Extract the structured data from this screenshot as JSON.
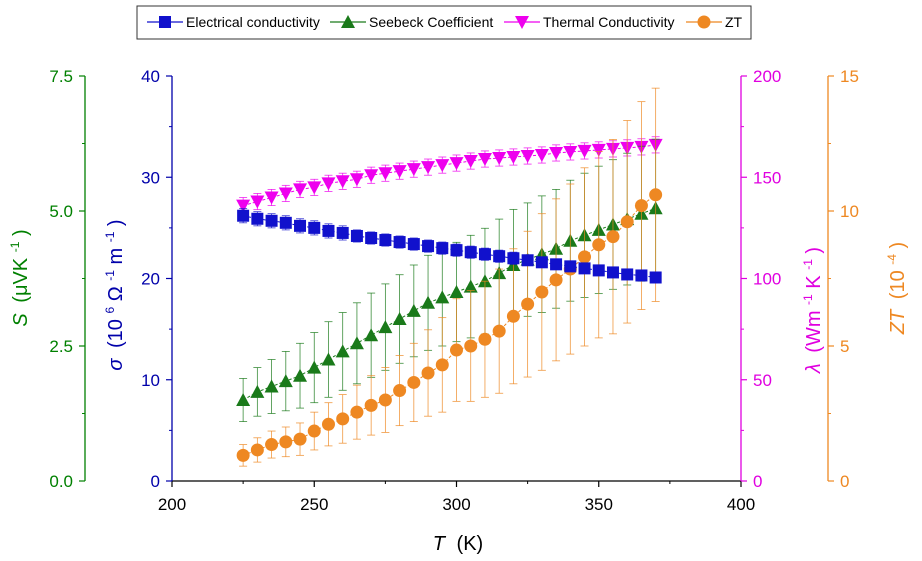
{
  "chart_data": {
    "type": "scatter",
    "x_axis": {
      "label": "T",
      "unit": "(K)",
      "range": [
        200,
        400
      ],
      "ticks": [
        200,
        250,
        300,
        350,
        400
      ],
      "tick_labels": [
        "200",
        "250",
        "300",
        "350",
        "400"
      ]
    },
    "y_axes": {
      "S": {
        "label_symbol": "S",
        "label_unit": "(μVK",
        "label_exp": "-1",
        "label_close": ")",
        "range": [
          0,
          7.5
        ],
        "tick_labels": [
          "0.0",
          "2.5",
          "5.0",
          "7.5"
        ],
        "color": "#008000"
      },
      "sigma": {
        "label_symbol": "σ",
        "label_unit": "(10",
        "label_exp1": "6",
        "label_mid": "Ω",
        "label_exp2": "-1",
        "label_m": "m",
        "label_exp3": "-1",
        "label_close": ")",
        "range": [
          0,
          40
        ],
        "tick_labels": [
          "0",
          "10",
          "20",
          "30",
          "40"
        ],
        "color": "#0000aa"
      },
      "lambda": {
        "label_symbol": "λ",
        "label_unit": "(Wm",
        "label_exp1": "-1",
        "label_k": "K",
        "label_exp2": "-1",
        "label_close": ")",
        "range": [
          0,
          200
        ],
        "tick_labels": [
          "0",
          "50",
          "100",
          "150",
          "200"
        ],
        "color": "#e000e0"
      },
      "zt": {
        "label_symbol": "ZT",
        "label_unit": "(10",
        "label_exp": "-4",
        "label_close": ")",
        "range": [
          0,
          15
        ],
        "tick_labels": [
          "0",
          "5",
          "10",
          "15"
        ],
        "color": "#ee8822"
      }
    },
    "legend": {
      "placement": "top-center",
      "entries": [
        "Electrical conductivity",
        "Seebeck Coefficient",
        "Thermal Conductivity",
        "ZT"
      ]
    },
    "x": [
      225,
      230,
      235,
      240,
      245,
      250,
      255,
      260,
      265,
      270,
      275,
      280,
      285,
      290,
      295,
      300,
      305,
      310,
      315,
      320,
      325,
      330,
      335,
      340,
      345,
      350,
      355,
      360,
      365,
      370
    ],
    "series": [
      {
        "name": "Electrical conductivity",
        "axis": "sigma",
        "marker": "square",
        "color": "#1111cc",
        "values": [
          26.2,
          25.9,
          25.7,
          25.5,
          25.2,
          25.0,
          24.7,
          24.5,
          24.2,
          24.0,
          23.8,
          23.6,
          23.4,
          23.2,
          23.0,
          22.8,
          22.6,
          22.4,
          22.2,
          22.0,
          21.8,
          21.6,
          21.4,
          21.2,
          21.0,
          20.8,
          20.6,
          20.4,
          20.3,
          20.1
        ],
        "errors": [
          0.7,
          0.7,
          0.7,
          0.7,
          0.7,
          0.7,
          0.7,
          0.7,
          0.6,
          0.6,
          0.6,
          0.6,
          0.6,
          0.6,
          0.6,
          0.6,
          0.6,
          0.6,
          0.6,
          0.6,
          0.5,
          0.5,
          0.5,
          0.5,
          0.5,
          0.5,
          0.5,
          0.5,
          0.5,
          0.5
        ]
      },
      {
        "name": "Seebeck Coefficient",
        "axis": "S",
        "marker": "triangle-up",
        "color": "#1a7a1a",
        "values": [
          1.5,
          1.65,
          1.75,
          1.85,
          1.95,
          2.1,
          2.25,
          2.4,
          2.55,
          2.7,
          2.85,
          3.0,
          3.15,
          3.3,
          3.4,
          3.5,
          3.6,
          3.7,
          3.85,
          4.0,
          4.1,
          4.2,
          4.3,
          4.45,
          4.55,
          4.65,
          4.75,
          4.85,
          4.95,
          5.05
        ],
        "errors": [
          0.4,
          0.45,
          0.5,
          0.55,
          0.6,
          0.65,
          0.7,
          0.72,
          0.75,
          0.78,
          0.8,
          0.82,
          0.85,
          0.88,
          0.9,
          0.92,
          0.95,
          0.98,
          1.0,
          1.03,
          1.05,
          1.08,
          1.1,
          1.12,
          1.15,
          1.18,
          1.2,
          1.22,
          1.25,
          1.28
        ]
      },
      {
        "name": "Thermal Conductivity",
        "axis": "lambda",
        "marker": "triangle-down",
        "color": "#ee00ee",
        "values": [
          136,
          138,
          140,
          142,
          144,
          145,
          147,
          148,
          149,
          151,
          152,
          153,
          154,
          155,
          156,
          157,
          158,
          159,
          159.5,
          160,
          160.5,
          161,
          162,
          162.5,
          163,
          163.5,
          164,
          164.5,
          165,
          166
        ],
        "errors": [
          4,
          4,
          4,
          4,
          4,
          4,
          4,
          4,
          4,
          4,
          4,
          4,
          4,
          4,
          4,
          4,
          4,
          4,
          4,
          4,
          4,
          4,
          4,
          4,
          4,
          4,
          4,
          4,
          4,
          4
        ]
      },
      {
        "name": "ZT",
        "axis": "zt",
        "marker": "circle",
        "color": "#ee8822",
        "values": [
          0.95,
          1.15,
          1.35,
          1.45,
          1.55,
          1.85,
          2.1,
          2.3,
          2.55,
          2.8,
          3.0,
          3.35,
          3.65,
          4.0,
          4.3,
          4.85,
          5.0,
          5.25,
          5.55,
          6.1,
          6.55,
          7.0,
          7.45,
          7.85,
          8.3,
          8.75,
          9.05,
          9.6,
          10.2,
          10.6
        ],
        "errors": [
          0.4,
          0.45,
          0.5,
          0.55,
          0.6,
          0.7,
          0.8,
          0.9,
          1.0,
          1.1,
          1.2,
          1.3,
          1.45,
          1.6,
          1.75,
          1.9,
          2.05,
          2.15,
          2.3,
          2.5,
          2.7,
          2.9,
          3.0,
          3.15,
          3.3,
          3.45,
          3.6,
          3.75,
          3.85,
          3.95
        ]
      }
    ]
  }
}
